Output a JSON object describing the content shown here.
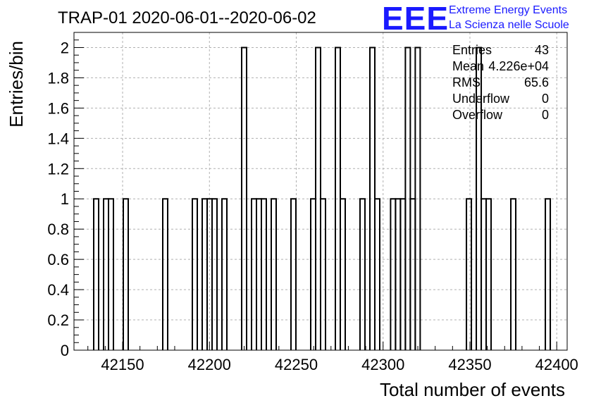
{
  "title": "TRAP-01 2020-06-01--2020-06-02",
  "logo": {
    "mark": "EEE",
    "line1": "Extreme Energy Events",
    "line2": "La Scienza nelle Scuole",
    "color": "#1a1aff"
  },
  "stats": [
    {
      "label": "Entries",
      "value": "43"
    },
    {
      "label": "Mean",
      "value": "4.226e+04"
    },
    {
      "label": "RMS",
      "value": "65.6"
    },
    {
      "label": "Underflow",
      "value": "0"
    },
    {
      "label": "Overflow",
      "value": "0"
    }
  ],
  "chart_data": {
    "type": "bar",
    "histogram": true,
    "title": "TRAP-01 2020-06-01--2020-06-02",
    "xlabel": "Total number of events",
    "ylabel": "Entries/bin",
    "xlim": [
      42122,
      42406
    ],
    "ylim": [
      0,
      2.1
    ],
    "grid": true,
    "x_ticks": [
      42150,
      42200,
      42250,
      42300,
      42350,
      42400
    ],
    "y_ticks": [
      "0",
      "0.2",
      "0.4",
      "0.6",
      "0.8",
      "1",
      "1.2",
      "1.4",
      "1.6",
      "1.8",
      "2"
    ],
    "y_tick_values": [
      0,
      0.2,
      0.4,
      0.6,
      0.8,
      1,
      1.2,
      1.4,
      1.6,
      1.8,
      2
    ],
    "bin_width": 2.84,
    "bins": [
      {
        "x": 42133.36,
        "count": 1
      },
      {
        "x": 42139.04,
        "count": 1
      },
      {
        "x": 42141.88,
        "count": 1
      },
      {
        "x": 42150.4,
        "count": 1
      },
      {
        "x": 42173.12,
        "count": 1
      },
      {
        "x": 42190.16,
        "count": 1
      },
      {
        "x": 42195.84,
        "count": 1
      },
      {
        "x": 42198.68,
        "count": 1
      },
      {
        "x": 42201.52,
        "count": 1
      },
      {
        "x": 42207.2,
        "count": 1
      },
      {
        "x": 42218.56,
        "count": 2
      },
      {
        "x": 42224.24,
        "count": 1
      },
      {
        "x": 42227.08,
        "count": 1
      },
      {
        "x": 42229.92,
        "count": 1
      },
      {
        "x": 42235.6,
        "count": 1
      },
      {
        "x": 42246.96,
        "count": 1
      },
      {
        "x": 42258.32,
        "count": 1
      },
      {
        "x": 42261.16,
        "count": 2
      },
      {
        "x": 42264.0,
        "count": 1
      },
      {
        "x": 42272.52,
        "count": 2
      },
      {
        "x": 42275.36,
        "count": 1
      },
      {
        "x": 42286.72,
        "count": 1
      },
      {
        "x": 42292.4,
        "count": 2
      },
      {
        "x": 42295.24,
        "count": 1
      },
      {
        "x": 42304.32,
        "count": 1
      },
      {
        "x": 42307.16,
        "count": 1
      },
      {
        "x": 42310.0,
        "count": 1
      },
      {
        "x": 42312.84,
        "count": 2
      },
      {
        "x": 42315.68,
        "count": 1
      },
      {
        "x": 42318.52,
        "count": 2
      },
      {
        "x": 42348.0,
        "count": 1
      },
      {
        "x": 42353.68,
        "count": 2
      },
      {
        "x": 42356.52,
        "count": 1
      },
      {
        "x": 42359.36,
        "count": 1
      },
      {
        "x": 42373.56,
        "count": 1
      },
      {
        "x": 42393.44,
        "count": 1
      }
    ]
  }
}
